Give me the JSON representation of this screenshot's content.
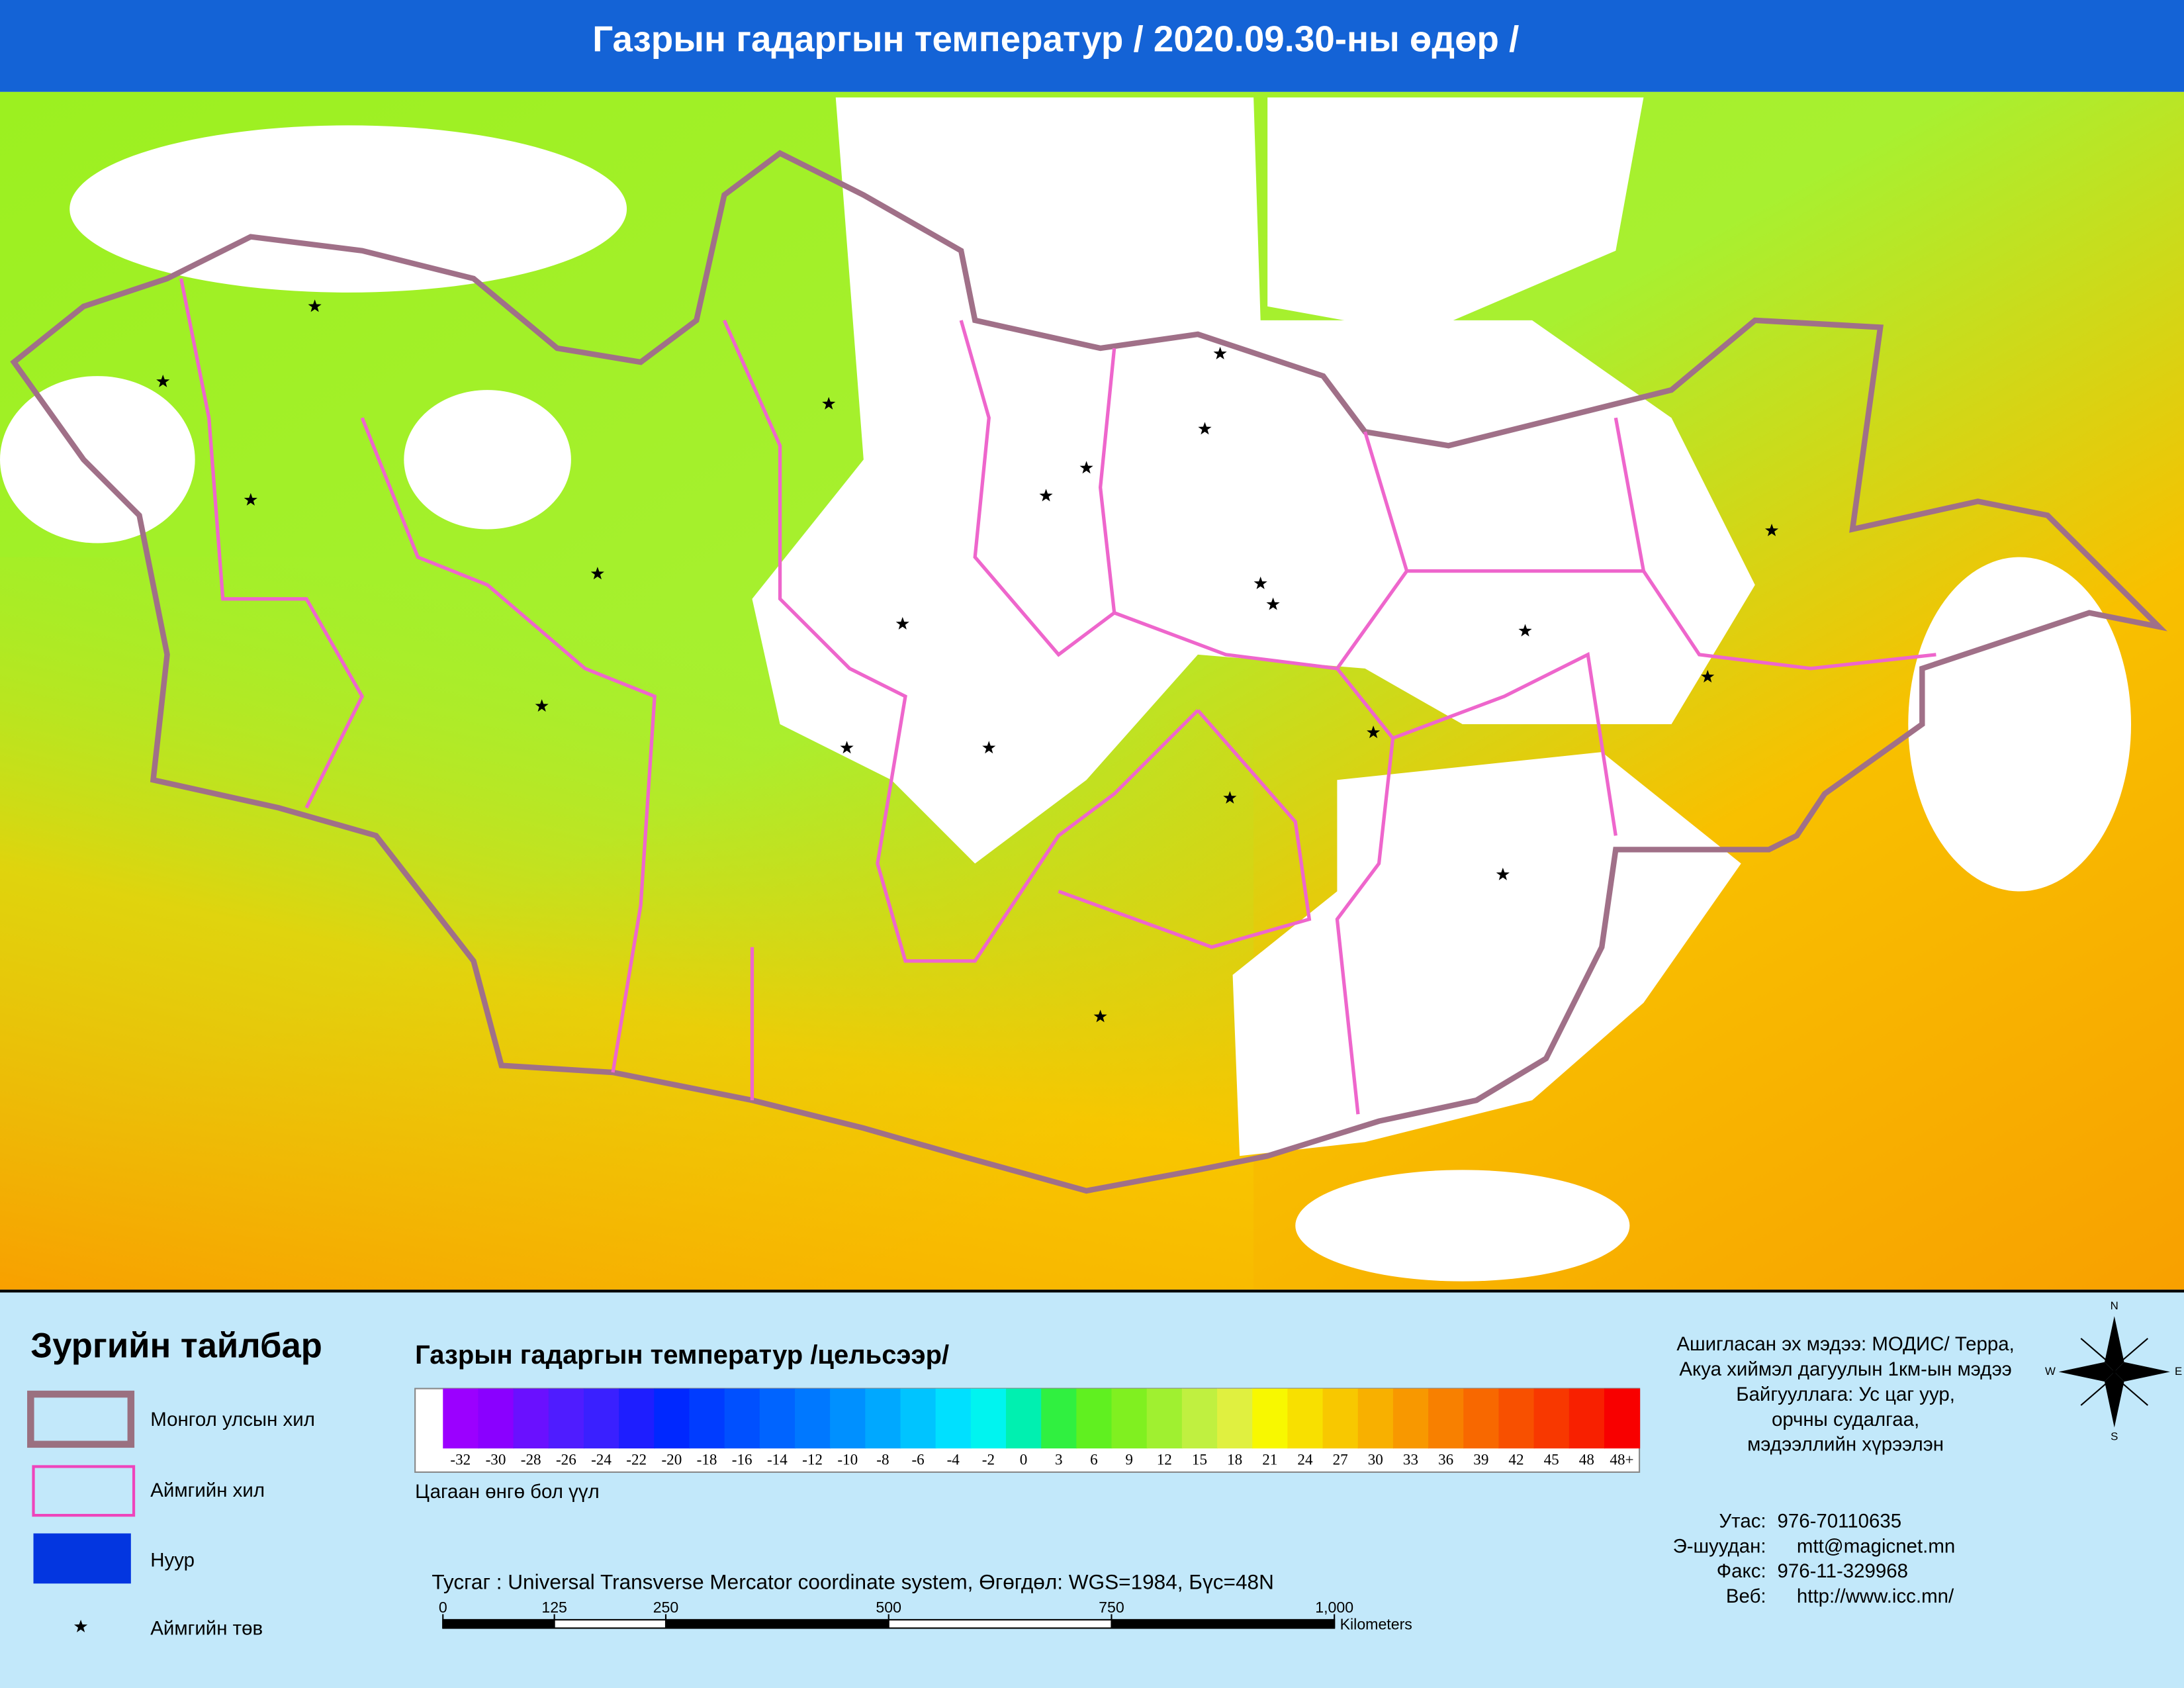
{
  "header": {
    "title": "Газрын гадаргын температур / 2020.09.30-ны өдөр /"
  },
  "legend": {
    "title": "Зургийн тайлбар",
    "items": [
      "Монгол улсын хил",
      "Аймгийн хил",
      "Нуур",
      "Аймгийн төв"
    ]
  },
  "colorbar": {
    "title": "Газрын гадаргын температур /цельсээр/",
    "labels": [
      -32,
      -30,
      -28,
      -26,
      -24,
      -22,
      -20,
      -18,
      -16,
      -14,
      -12,
      -10,
      -8,
      -6,
      -4,
      -2,
      0,
      3,
      6,
      9,
      12,
      15,
      18,
      21,
      24,
      27,
      30,
      33,
      36,
      39,
      42,
      45,
      48,
      "48+"
    ],
    "colors": [
      "#9b00ff",
      "#8a00ff",
      "#6a10ff",
      "#4f1cff",
      "#3a20ff",
      "#1e1eff",
      "#0028ff",
      "#003cff",
      "#0050ff",
      "#0064ff",
      "#0078ff",
      "#0090ff",
      "#00a8ff",
      "#00c4ff",
      "#00e0ff",
      "#00f4f0",
      "#00f0b0",
      "#30f040",
      "#60f020",
      "#80f020",
      "#a0f030",
      "#c0f040",
      "#e0f040",
      "#f8f800",
      "#f8e000",
      "#f8c800",
      "#f8b000",
      "#f89800",
      "#f88000",
      "#f86800",
      "#f85000",
      "#f83800",
      "#f82000",
      "#f80000"
    ],
    "note": "Цагаан өнгө бол үүл"
  },
  "projection": "Тусгаг : Universal Transverse Mercator coordinate system, Өгөгдөл: WGS=1984, Бүс=48N",
  "scale_bar": {
    "ticks": [
      0,
      125,
      250,
      500,
      750,
      {
        "value": 1000,
        "label": "1,000"
      }
    ],
    "unit": "Kilometers"
  },
  "source": [
    "Ашигласан эх мэдээ: МОДИС/ Терра,",
    "Акуа хиймэл дагуулын 1км-ын мэдээ",
    "Байгууллага: Ус цаг уур,",
    "орчны судалгаа,",
    "мэдээллийн хүрээлэн"
  ],
  "contacts": [
    [
      "Утас:",
      "976-70110635"
    ],
    [
      "Э-шуудан:",
      "mtt@magicnet.mn"
    ],
    [
      "Факс:",
      "976-11-329968"
    ],
    [
      "Веб:",
      "http://www.icc.mn/"
    ]
  ],
  "compass": [
    "N",
    "E",
    "S",
    "W"
  ]
}
